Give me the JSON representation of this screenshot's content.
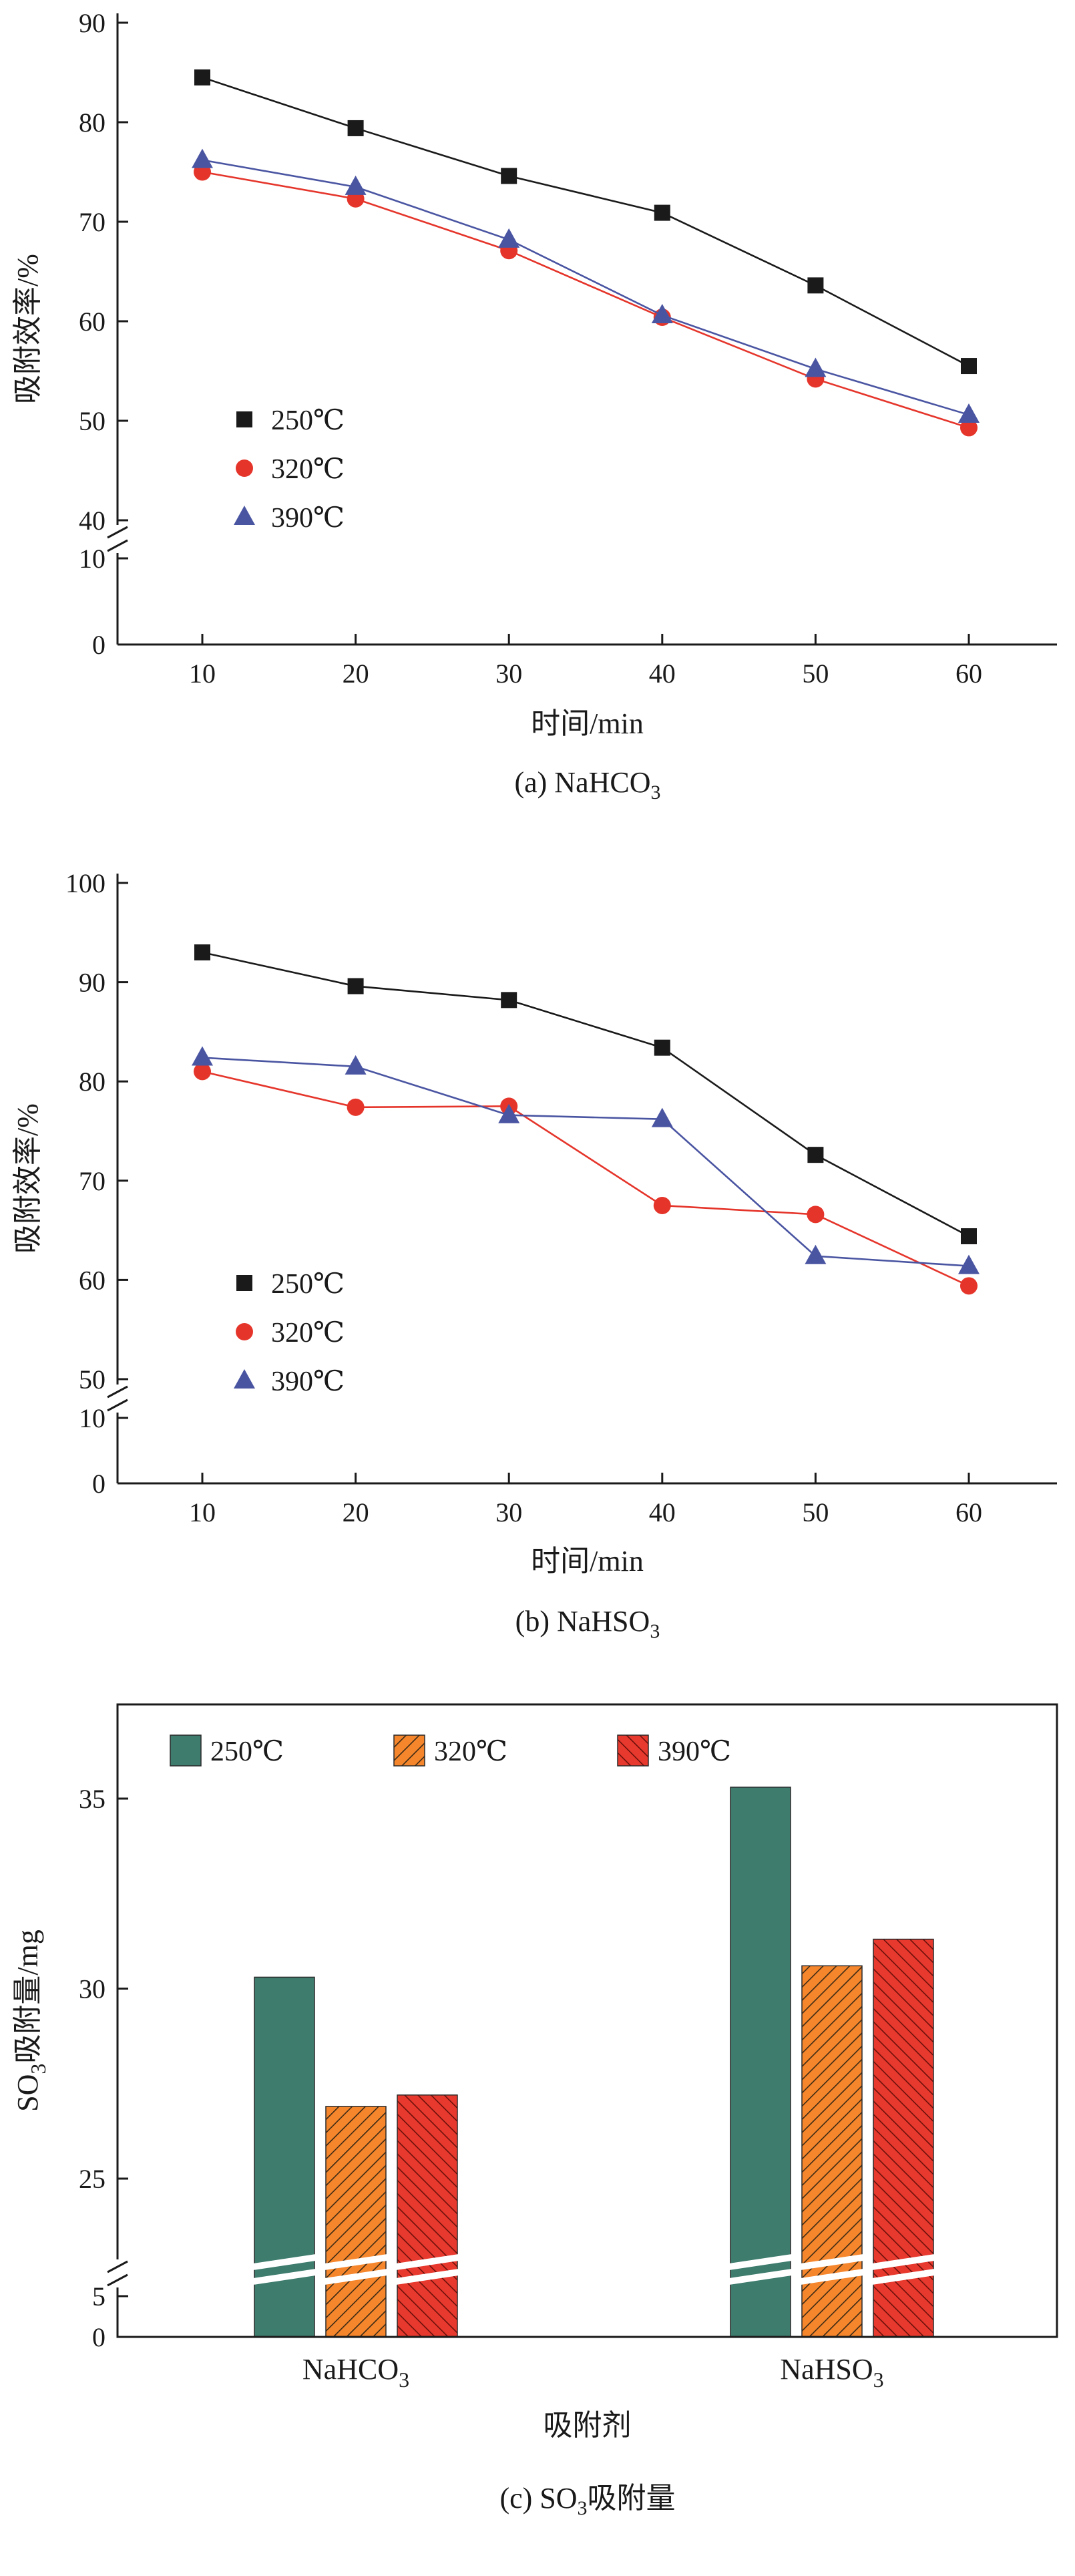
{
  "page": {
    "background": "#ffffff",
    "text_color": "#1a1a1a"
  },
  "chart_data": [
    {
      "id": "chart-a",
      "type": "line",
      "caption": {
        "pre": "(a) NaHCO",
        "sub": "3",
        "post": ""
      },
      "xlabel": "时间/min",
      "ylabel": "吸附效率/%",
      "x": [
        10,
        20,
        30,
        40,
        50,
        60
      ],
      "xticks": [
        10,
        20,
        30,
        40,
        50,
        60
      ],
      "yticks_lower": [
        0,
        10
      ],
      "yticks_upper": [
        40,
        50,
        60,
        70,
        80,
        90
      ],
      "axis_break_between": [
        10,
        40
      ],
      "ylim_upper": [
        40,
        90
      ],
      "grid": false,
      "legend_position": "inside-lower-left",
      "series": [
        {
          "name": "250℃",
          "marker": "square",
          "color": "#1a1a1a",
          "values": [
            84.5,
            79.4,
            74.6,
            70.9,
            63.6,
            55.5
          ]
        },
        {
          "name": "320℃",
          "marker": "circle",
          "color": "#e5352b",
          "values": [
            75.0,
            72.3,
            67.1,
            60.4,
            54.2,
            49.3
          ]
        },
        {
          "name": "390℃",
          "marker": "triangle",
          "color": "#4a55a2",
          "values": [
            76.2,
            73.5,
            68.2,
            60.6,
            55.2,
            50.6
          ]
        }
      ]
    },
    {
      "id": "chart-b",
      "type": "line",
      "caption": {
        "pre": "(b) NaHSO",
        "sub": "3",
        "post": ""
      },
      "xlabel": "时间/min",
      "ylabel": "吸附效率/%",
      "x": [
        10,
        20,
        30,
        40,
        50,
        60
      ],
      "xticks": [
        10,
        20,
        30,
        40,
        50,
        60
      ],
      "yticks_lower": [
        0,
        10
      ],
      "yticks_upper": [
        50,
        60,
        70,
        80,
        90,
        100
      ],
      "axis_break_between": [
        10,
        50
      ],
      "ylim_upper": [
        50,
        100
      ],
      "grid": false,
      "legend_position": "inside-lower-left",
      "series": [
        {
          "name": "250℃",
          "marker": "square",
          "color": "#1a1a1a",
          "values": [
            93.0,
            89.6,
            88.2,
            83.4,
            72.6,
            64.4
          ]
        },
        {
          "name": "320℃",
          "marker": "circle",
          "color": "#e5352b",
          "values": [
            81.0,
            77.4,
            77.5,
            67.5,
            66.6,
            59.4
          ]
        },
        {
          "name": "390℃",
          "marker": "triangle",
          "color": "#4a55a2",
          "values": [
            82.4,
            81.5,
            76.6,
            76.2,
            62.4,
            61.4
          ]
        }
      ]
    },
    {
      "id": "chart-c",
      "type": "bar",
      "caption": {
        "pre": "(c) SO",
        "sub": "3",
        "post": "吸附量"
      },
      "xlabel": "吸附剂",
      "ylabel_parts": [
        {
          "t": "SO"
        },
        {
          "t": "3",
          "sub": true
        },
        {
          "t": "吸附量/mg"
        }
      ],
      "categories": [
        {
          "pre": "NaHCO",
          "sub": "3"
        },
        {
          "pre": "NaHSO",
          "sub": "3"
        }
      ],
      "yticks_lower": [
        0,
        5
      ],
      "yticks_upper": [
        25,
        30,
        35
      ],
      "axis_break_between": [
        5,
        25
      ],
      "grid": false,
      "legend_position": "inside-top-left",
      "series": [
        {
          "name": "250℃",
          "color": "#3e7c6e",
          "hatch": "none",
          "values": [
            30.3,
            35.3
          ]
        },
        {
          "name": "320℃",
          "color": "#f6862c",
          "hatch": "diagonal-up",
          "values": [
            26.9,
            30.6
          ]
        },
        {
          "name": "390℃",
          "color": "#e8392e",
          "hatch": "diagonal-down",
          "values": [
            27.2,
            31.3
          ]
        }
      ]
    }
  ]
}
